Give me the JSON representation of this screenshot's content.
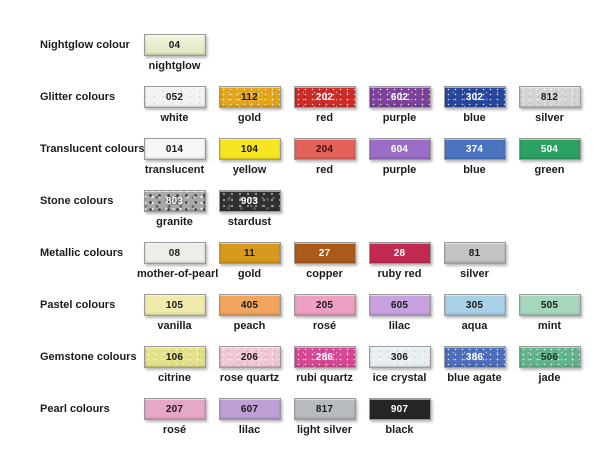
{
  "page": {
    "background": "#ffffff",
    "text_color": "#1c1c1c"
  },
  "rows": [
    {
      "category": "Nightglow colour",
      "swatches": [
        {
          "code": "04",
          "name": "nightglow",
          "bg": "#e9edc4",
          "text": "#1a1a1a",
          "effect": "glow"
        }
      ]
    },
    {
      "category": "Glitter colours",
      "swatches": [
        {
          "code": "052",
          "name": "white",
          "bg": "#f2f2f0",
          "text": "#1a1a1a",
          "effect": "glitter"
        },
        {
          "code": "112",
          "name": "gold",
          "bg": "#e2a51c",
          "text": "#1a1a1a",
          "effect": "glitter"
        },
        {
          "code": "202",
          "name": "red",
          "bg": "#cd2b26",
          "text": "#ffffff",
          "effect": "glitter"
        },
        {
          "code": "602",
          "name": "purple",
          "bg": "#7d429c",
          "text": "#ffffff",
          "effect": "glitter"
        },
        {
          "code": "302",
          "name": "blue",
          "bg": "#27479e",
          "text": "#ffffff",
          "effect": "glitter"
        },
        {
          "code": "812",
          "name": "silver",
          "bg": "#d4d4d6",
          "text": "#1a1a1a",
          "effect": "glitter"
        }
      ]
    },
    {
      "category": "Translucent colours",
      "swatches": [
        {
          "code": "014",
          "name": "translucent",
          "bg": "#f6f6f4",
          "text": "#1a1a1a",
          "effect": "plain"
        },
        {
          "code": "104",
          "name": "yellow",
          "bg": "#f6e622",
          "text": "#1a1a1a",
          "effect": "plain"
        },
        {
          "code": "204",
          "name": "red",
          "bg": "#e2625a",
          "text": "#401010",
          "effect": "plain"
        },
        {
          "code": "604",
          "name": "purple",
          "bg": "#9a6ec6",
          "text": "#ffffff",
          "effect": "plain"
        },
        {
          "code": "374",
          "name": "blue",
          "bg": "#4a73c2",
          "text": "#ffffff",
          "effect": "plain"
        },
        {
          "code": "504",
          "name": "green",
          "bg": "#2ba164",
          "text": "#ffffff",
          "effect": "plain"
        }
      ]
    },
    {
      "category": "Stone colours",
      "swatches": [
        {
          "code": "803",
          "name": "granite",
          "bg": "#a8a8a8",
          "text": "#ffffff",
          "effect": "stone-light"
        },
        {
          "code": "903",
          "name": "stardust",
          "bg": "#303030",
          "text": "#ffffff",
          "effect": "stone-dark"
        }
      ]
    },
    {
      "category": "Metallic colours",
      "swatches": [
        {
          "code": "08",
          "name": "mother-of-pearl",
          "bg": "#eeeee8",
          "text": "#1a1a1a",
          "effect": "plain"
        },
        {
          "code": "11",
          "name": "gold",
          "bg": "#d79a1e",
          "text": "#1a1a1a",
          "effect": "plain"
        },
        {
          "code": "27",
          "name": "copper",
          "bg": "#ac5a1a",
          "text": "#ffffff",
          "effect": "plain"
        },
        {
          "code": "28",
          "name": "ruby red",
          "bg": "#c12950",
          "text": "#ffffff",
          "effect": "plain"
        },
        {
          "code": "81",
          "name": "silver",
          "bg": "#c4c4c4",
          "text": "#1a1a1a",
          "effect": "plain"
        }
      ]
    },
    {
      "category": "Pastel colours",
      "swatches": [
        {
          "code": "105",
          "name": "vanilla",
          "bg": "#f0ebac",
          "text": "#1a1a1a",
          "effect": "plain"
        },
        {
          "code": "405",
          "name": "peach",
          "bg": "#f1a55f",
          "text": "#1a1a1a",
          "effect": "plain"
        },
        {
          "code": "205",
          "name": "rosé",
          "bg": "#eea0c3",
          "text": "#1a1a1a",
          "effect": "plain"
        },
        {
          "code": "605",
          "name": "lilac",
          "bg": "#c7a2df",
          "text": "#1a1a1a",
          "effect": "plain"
        },
        {
          "code": "305",
          "name": "aqua",
          "bg": "#a8d0e6",
          "text": "#1a1a1a",
          "effect": "plain"
        },
        {
          "code": "505",
          "name": "mint",
          "bg": "#a6d6bd",
          "text": "#1a1a1a",
          "effect": "plain"
        }
      ]
    },
    {
      "category": "Gemstone colours",
      "swatches": [
        {
          "code": "106",
          "name": "citrine",
          "bg": "#e3e086",
          "text": "#1a1a1a",
          "effect": "glitter"
        },
        {
          "code": "206",
          "name": "rose quartz",
          "bg": "#f1c6d7",
          "text": "#1a1a1a",
          "effect": "glitter"
        },
        {
          "code": "286",
          "name": "rubi quartz",
          "bg": "#d84795",
          "text": "#ffffff",
          "effect": "glitter"
        },
        {
          "code": "306",
          "name": "ice crystal",
          "bg": "#e8eff2",
          "text": "#1a1a1a",
          "effect": "glitter"
        },
        {
          "code": "386",
          "name": "blue agate",
          "bg": "#4d6ebc",
          "text": "#ffffff",
          "effect": "glitter"
        },
        {
          "code": "506",
          "name": "jade",
          "bg": "#62b48d",
          "text": "#14352a",
          "effect": "glitter"
        }
      ]
    },
    {
      "category": "Pearl colours",
      "swatches": [
        {
          "code": "207",
          "name": "rosé",
          "bg": "#e7a8c7",
          "text": "#1a1a1a",
          "effect": "plain"
        },
        {
          "code": "607",
          "name": "lilac",
          "bg": "#bea0d6",
          "text": "#1a1a1a",
          "effect": "plain"
        },
        {
          "code": "817",
          "name": "light silver",
          "bg": "#b8bcc0",
          "text": "#1a1a1a",
          "effect": "plain"
        },
        {
          "code": "907",
          "name": "black",
          "bg": "#262626",
          "text": "#ffffff",
          "effect": "plain"
        }
      ]
    }
  ]
}
